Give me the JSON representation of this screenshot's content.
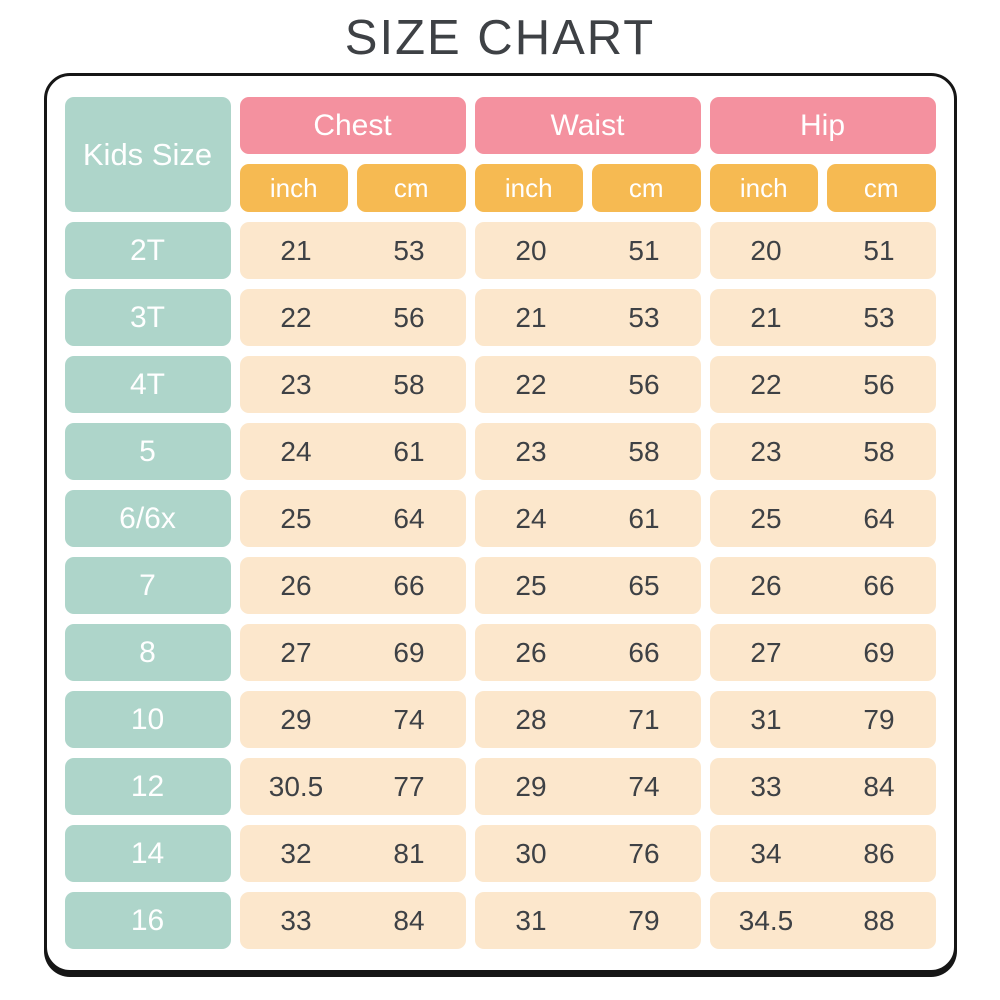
{
  "title": "SIZE CHART",
  "header": {
    "kids_size": "Kids Size",
    "measurements": [
      "Chest",
      "Waist",
      "Hip"
    ],
    "units": [
      "inch",
      "cm",
      "inch",
      "cm",
      "inch",
      "cm"
    ]
  },
  "rows": [
    {
      "size": "2T",
      "values": [
        "21",
        "53",
        "20",
        "51",
        "20",
        "51"
      ]
    },
    {
      "size": "3T",
      "values": [
        "22",
        "56",
        "21",
        "53",
        "21",
        "53"
      ]
    },
    {
      "size": "4T",
      "values": [
        "23",
        "58",
        "22",
        "56",
        "22",
        "56"
      ]
    },
    {
      "size": "5",
      "values": [
        "24",
        "61",
        "23",
        "58",
        "23",
        "58"
      ]
    },
    {
      "size": "6/6x",
      "values": [
        "25",
        "64",
        "24",
        "61",
        "25",
        "64"
      ]
    },
    {
      "size": "7",
      "values": [
        "26",
        "66",
        "25",
        "65",
        "26",
        "66"
      ]
    },
    {
      "size": "8",
      "values": [
        "27",
        "69",
        "26",
        "66",
        "27",
        "69"
      ]
    },
    {
      "size": "10",
      "values": [
        "29",
        "74",
        "28",
        "71",
        "31",
        "79"
      ]
    },
    {
      "size": "12",
      "values": [
        "30.5",
        "77",
        "29",
        "74",
        "33",
        "84"
      ]
    },
    {
      "size": "14",
      "values": [
        "32",
        "81",
        "30",
        "76",
        "34",
        "86"
      ]
    },
    {
      "size": "16",
      "values": [
        "33",
        "84",
        "31",
        "79",
        "34.5",
        "88"
      ]
    }
  ],
  "colors": {
    "teal": "#aed5ca",
    "pink": "#f4919f",
    "orange": "#f6ba52",
    "cream": "#fce7cc",
    "text_dark": "#3e4145",
    "border_black": "#161616"
  },
  "chart_data": {
    "type": "table",
    "title": "SIZE CHART",
    "columns": [
      "Kids Size",
      "Chest inch",
      "Chest cm",
      "Waist inch",
      "Waist cm",
      "Hip inch",
      "Hip cm"
    ],
    "rows": [
      [
        "2T",
        21,
        53,
        20,
        51,
        20,
        51
      ],
      [
        "3T",
        22,
        56,
        21,
        53,
        21,
        53
      ],
      [
        "4T",
        23,
        58,
        22,
        56,
        22,
        56
      ],
      [
        "5",
        24,
        61,
        23,
        58,
        23,
        58
      ],
      [
        "6/6x",
        25,
        64,
        24,
        61,
        25,
        64
      ],
      [
        "7",
        26,
        66,
        25,
        65,
        26,
        66
      ],
      [
        "8",
        27,
        69,
        26,
        66,
        27,
        69
      ],
      [
        "10",
        29,
        74,
        28,
        71,
        31,
        79
      ],
      [
        "12",
        30.5,
        77,
        29,
        74,
        33,
        84
      ],
      [
        "14",
        32,
        81,
        30,
        76,
        34,
        86
      ],
      [
        "16",
        33,
        84,
        31,
        79,
        34.5,
        88
      ]
    ]
  }
}
